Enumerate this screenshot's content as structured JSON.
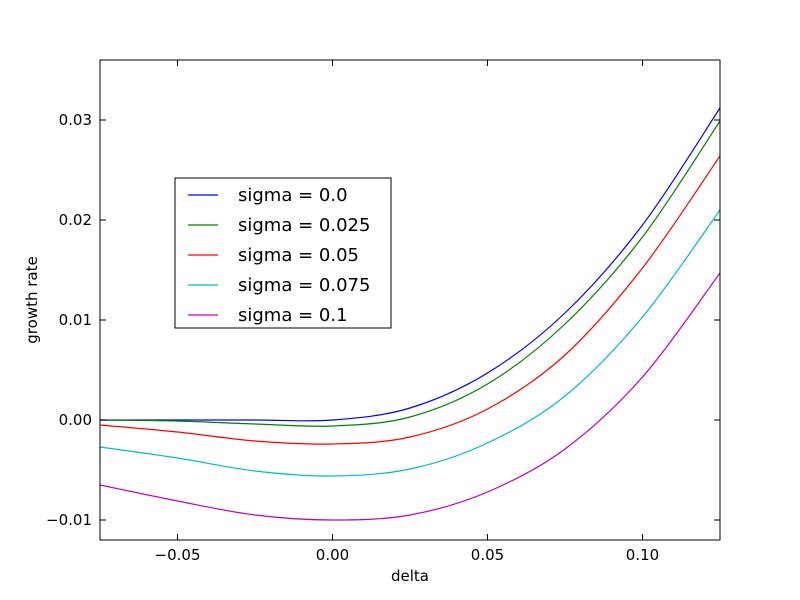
{
  "chart_data": {
    "type": "line",
    "title": "",
    "xlabel": "delta",
    "ylabel": "growth rate",
    "xlim": [
      -0.075,
      0.125
    ],
    "ylim": [
      -0.012,
      0.036
    ],
    "xticks": [
      -0.05,
      0.0,
      0.05,
      0.1
    ],
    "xtick_labels": [
      "−0.05",
      "0.00",
      "0.05",
      "0.10"
    ],
    "yticks": [
      -0.01,
      0.0,
      0.01,
      0.02,
      0.03
    ],
    "ytick_labels": [
      "−0.01",
      "0.00",
      "0.01",
      "0.02",
      "0.03"
    ],
    "grid": false,
    "legend_position": "upper-left",
    "x": [
      -0.075,
      -0.05,
      -0.025,
      0.0,
      0.025,
      0.05,
      0.075,
      0.1,
      0.125
    ],
    "series": [
      {
        "name": "sigma = 0.0",
        "color": "#0000ff",
        "values": [
          0.0,
          0.0,
          0.0,
          0.0,
          0.0012,
          0.0047,
          0.0107,
          0.0195,
          0.0312
        ]
      },
      {
        "name": "sigma = 0.025",
        "color": "#008000",
        "values": [
          0.0,
          -0.0001,
          -0.0004,
          -0.0006,
          0.0003,
          0.0036,
          0.0096,
          0.0183,
          0.0299
        ]
      },
      {
        "name": "sigma = 0.05",
        "color": "#ff0000",
        "values": [
          -0.0005,
          -0.0012,
          -0.0021,
          -0.0024,
          -0.0017,
          0.0011,
          0.0065,
          0.0152,
          0.0264
        ]
      },
      {
        "name": "sigma = 0.075",
        "color": "#00bfbf",
        "values": [
          -0.0027,
          -0.0038,
          -0.0051,
          -0.0056,
          -0.0049,
          -0.0023,
          0.0024,
          0.0103,
          0.021
        ]
      },
      {
        "name": "sigma = 0.1",
        "color": "#bf00bf",
        "values": [
          -0.0065,
          -0.0081,
          -0.0095,
          -0.01,
          -0.0095,
          -0.0072,
          -0.0029,
          0.0043,
          0.0147
        ]
      }
    ]
  }
}
